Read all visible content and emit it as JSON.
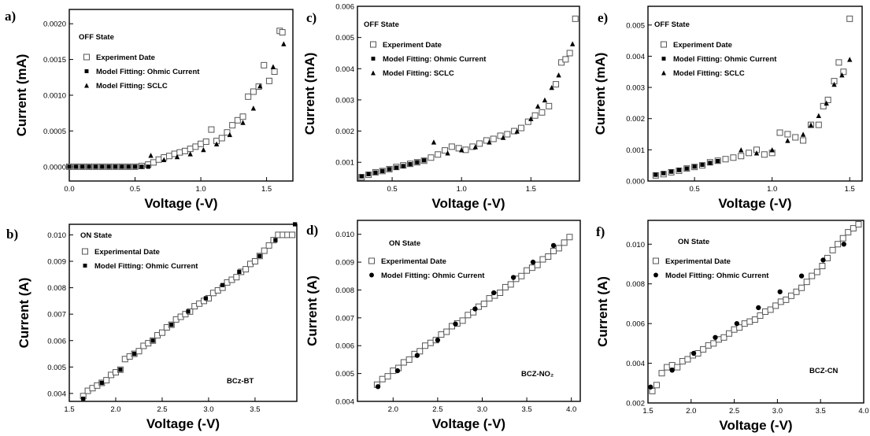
{
  "chart_data": [
    {
      "panel": "a)",
      "type": "scatter",
      "state_label": "OFF State",
      "xlabel": "Voltage (-V)",
      "ylabel": "Current (mA)",
      "sample_label": "",
      "xlim": [
        0.0,
        1.7
      ],
      "ylim": [
        -0.0002,
        0.0022
      ],
      "xticks": [
        0.0,
        0.5,
        1.0,
        1.5
      ],
      "xtick_labels": [
        "0.0",
        "0.5",
        "1.0",
        "1.5"
      ],
      "yticks": [
        0.0,
        0.0005,
        0.001,
        0.0015,
        0.002
      ],
      "ytick_labels": [
        "0.0000",
        "0.0005",
        "0.0010",
        "0.0015",
        "0.0020"
      ],
      "series": [
        {
          "name": "Experiment Date",
          "marker": "square-open",
          "x": [
            0.0,
            0.05,
            0.1,
            0.15,
            0.2,
            0.25,
            0.3,
            0.35,
            0.4,
            0.45,
            0.5,
            0.55,
            0.6,
            0.64,
            0.68,
            0.72,
            0.76,
            0.8,
            0.84,
            0.88,
            0.92,
            0.96,
            1.0,
            1.04,
            1.08,
            1.12,
            1.16,
            1.2,
            1.24,
            1.28,
            1.32,
            1.36,
            1.4,
            1.44,
            1.48,
            1.52,
            1.56,
            1.6,
            1.62
          ],
          "y": [
            0,
            0,
            0,
            0,
            0,
            0,
            0,
            0,
            0,
            0,
            0,
            1e-05,
            3e-05,
            6e-05,
            0.0001,
            0.00013,
            0.00015,
            0.00018,
            0.0002,
            0.00022,
            0.00025,
            0.00028,
            0.00032,
            0.00035,
            0.00052,
            0.00036,
            0.0004,
            0.00048,
            0.00058,
            0.00065,
            0.0007,
            0.00098,
            0.00105,
            0.00112,
            0.00142,
            0.0012,
            0.00133,
            0.0019,
            0.00188
          ]
        },
        {
          "name": "Model Fitting: Ohmic Current",
          "marker": "square-filled",
          "x": [
            0.0,
            0.05,
            0.1,
            0.15,
            0.2,
            0.25,
            0.3,
            0.35,
            0.4,
            0.45,
            0.5,
            0.55,
            0.6
          ],
          "y": [
            0,
            0,
            0,
            0,
            0,
            0,
            0,
            0,
            0,
            0,
            0,
            0,
            0
          ]
        },
        {
          "name": "Model Fitting: SCLC",
          "marker": "triangle-filled",
          "x": [
            0.62,
            0.72,
            0.82,
            0.92,
            1.02,
            1.12,
            1.22,
            1.32,
            1.4,
            1.45,
            1.55,
            1.63
          ],
          "y": [
            0.00016,
            0.0001,
            0.00014,
            0.00018,
            0.00024,
            0.00032,
            0.00045,
            0.00062,
            0.00082,
            0.00113,
            0.0014,
            0.00172
          ]
        }
      ],
      "legend": [
        "Experiment Date",
        "Model Fitting: Ohmic Current",
        "Model Fitting: SCLC"
      ]
    },
    {
      "panel": "c)",
      "type": "scatter",
      "state_label": "OFF State",
      "xlabel": "Voltage (-V)",
      "ylabel": "Current (mA)",
      "sample_label": "",
      "xlim": [
        0.25,
        1.85
      ],
      "ylim": [
        0.0004,
        0.006
      ],
      "xticks": [
        0.5,
        1.0,
        1.5
      ],
      "xtick_labels": [
        "0.5",
        "1.0",
        "1.5"
      ],
      "yticks": [
        0.001,
        0.002,
        0.003,
        0.004,
        0.005,
        0.006
      ],
      "ytick_labels": [
        "0.001",
        "0.002",
        "0.003",
        "0.004",
        "0.005",
        "0.006"
      ],
      "series": [
        {
          "name": "Experiment Date",
          "marker": "square-open",
          "x": [
            0.28,
            0.33,
            0.38,
            0.43,
            0.48,
            0.53,
            0.58,
            0.63,
            0.68,
            0.73,
            0.78,
            0.83,
            0.88,
            0.93,
            0.98,
            1.03,
            1.08,
            1.13,
            1.18,
            1.23,
            1.28,
            1.33,
            1.38,
            1.43,
            1.48,
            1.53,
            1.58,
            1.63,
            1.68,
            1.72,
            1.75,
            1.78,
            1.82
          ],
          "y": [
            0.00052,
            0.0006,
            0.00068,
            0.00072,
            0.00078,
            0.00085,
            0.0009,
            0.00095,
            0.001,
            0.00105,
            0.00115,
            0.00125,
            0.00138,
            0.0015,
            0.00145,
            0.0014,
            0.0015,
            0.0016,
            0.0017,
            0.00175,
            0.00185,
            0.0019,
            0.002,
            0.0021,
            0.0023,
            0.0025,
            0.0026,
            0.0028,
            0.0035,
            0.0042,
            0.0043,
            0.0045,
            0.0056
          ]
        },
        {
          "name": "Model Fitting: Ohmic Current",
          "marker": "square-filled",
          "x": [
            0.28,
            0.33,
            0.38,
            0.43,
            0.48,
            0.53,
            0.58,
            0.63,
            0.68,
            0.73
          ],
          "y": [
            0.00055,
            0.00062,
            0.00067,
            0.00072,
            0.00078,
            0.00083,
            0.00088,
            0.00094,
            0.001,
            0.00106
          ]
        },
        {
          "name": "Model Fitting: SCLC",
          "marker": "triangle-filled",
          "x": [
            0.8,
            0.9,
            1.0,
            1.1,
            1.2,
            1.3,
            1.4,
            1.5,
            1.55,
            1.6,
            1.65,
            1.7,
            1.8
          ],
          "y": [
            0.00165,
            0.0013,
            0.0014,
            0.0015,
            0.00165,
            0.0018,
            0.002,
            0.0024,
            0.0028,
            0.003,
            0.0034,
            0.0038,
            0.0048
          ]
        }
      ],
      "legend": [
        "Experiment Date",
        "Model Fitting: Ohmic Current",
        "Model Fitting: SCLC"
      ]
    },
    {
      "panel": "e)",
      "type": "scatter",
      "state_label": "OFF State",
      "xlabel": "Voltage (-V)",
      "ylabel": "Current (mA)",
      "sample_label": "",
      "xlim": [
        0.2,
        1.58
      ],
      "ylim": [
        0.0,
        0.0056
      ],
      "xticks": [
        0.5,
        1.0,
        1.5
      ],
      "xtick_labels": [
        "0.5",
        "1.0",
        "1.5"
      ],
      "yticks": [
        0.0,
        0.001,
        0.002,
        0.003,
        0.004,
        0.005
      ],
      "ytick_labels": [
        "0.000",
        "0.001",
        "0.002",
        "0.003",
        "0.004",
        "0.005"
      ],
      "series": [
        {
          "name": "Experiment Date",
          "marker": "square-open",
          "x": [
            0.25,
            0.3,
            0.35,
            0.4,
            0.45,
            0.5,
            0.55,
            0.6,
            0.65,
            0.7,
            0.75,
            0.8,
            0.85,
            0.9,
            0.95,
            1.0,
            1.05,
            1.1,
            1.15,
            1.2,
            1.25,
            1.3,
            1.33,
            1.36,
            1.4,
            1.43,
            1.46,
            1.5
          ],
          "y": [
            0.00018,
            0.00022,
            0.00028,
            0.00033,
            0.0004,
            0.00045,
            0.0005,
            0.0006,
            0.00065,
            0.0007,
            0.00075,
            0.0008,
            0.0009,
            0.001,
            0.00085,
            0.0009,
            0.00155,
            0.0015,
            0.0014,
            0.0013,
            0.0018,
            0.0018,
            0.0024,
            0.0026,
            0.0032,
            0.0038,
            0.0035,
            0.0052
          ]
        },
        {
          "name": "Model Fitting: Ohmic Current",
          "marker": "square-filled",
          "x": [
            0.25,
            0.3,
            0.35,
            0.4,
            0.45,
            0.5,
            0.55,
            0.6,
            0.65
          ],
          "y": [
            0.0002,
            0.00025,
            0.0003,
            0.00035,
            0.0004,
            0.00046,
            0.00052,
            0.00058,
            0.00064
          ]
        },
        {
          "name": "Model Fitting: SCLC",
          "marker": "triangle-filled",
          "x": [
            0.8,
            0.9,
            1.0,
            1.1,
            1.2,
            1.25,
            1.3,
            1.35,
            1.4,
            1.45,
            1.5
          ],
          "y": [
            0.001,
            0.0009,
            0.001,
            0.0013,
            0.0015,
            0.0018,
            0.0021,
            0.0025,
            0.0031,
            0.0034,
            0.0039
          ]
        }
      ],
      "legend": [
        "Experiment Date",
        "Model Fitting: Ohmic Current",
        "Model Fitting: SCLC"
      ]
    },
    {
      "panel": "b)",
      "type": "scatter",
      "state_label": "ON State",
      "xlabel": "Voltage (-V)",
      "ylabel": "Current (A)",
      "sample_label": "BCz-BT",
      "xlim": [
        1.5,
        3.95
      ],
      "ylim": [
        0.0037,
        0.0104
      ],
      "xticks": [
        1.5,
        2.0,
        2.5,
        3.0,
        3.5
      ],
      "xtick_labels": [
        "1.5",
        "2.0",
        "2.5",
        "3.0",
        "3.5"
      ],
      "yticks": [
        0.004,
        0.005,
        0.006,
        0.007,
        0.008,
        0.009,
        0.01
      ],
      "ytick_labels": [
        "0.004",
        "0.005",
        "0.006",
        "0.007",
        "0.008",
        "0.009",
        "0.010"
      ],
      "series": [
        {
          "name": "Experimental Date",
          "marker": "square-open",
          "x": [
            1.65,
            1.7,
            1.75,
            1.8,
            1.85,
            1.9,
            1.95,
            2.0,
            2.05,
            2.1,
            2.15,
            2.2,
            2.25,
            2.3,
            2.35,
            2.4,
            2.45,
            2.5,
            2.55,
            2.6,
            2.65,
            2.7,
            2.75,
            2.8,
            2.85,
            2.9,
            2.95,
            3.0,
            3.05,
            3.1,
            3.15,
            3.2,
            3.25,
            3.3,
            3.35,
            3.4,
            3.45,
            3.5,
            3.55,
            3.6,
            3.65,
            3.7,
            3.75,
            3.8,
            3.85,
            3.9
          ],
          "y": [
            0.0039,
            0.0041,
            0.0042,
            0.0043,
            0.0044,
            0.0045,
            0.0047,
            0.0048,
            0.0049,
            0.0053,
            0.0054,
            0.0055,
            0.0056,
            0.0058,
            0.0059,
            0.006,
            0.0062,
            0.0063,
            0.0065,
            0.0066,
            0.0068,
            0.0069,
            0.007,
            0.0071,
            0.0073,
            0.0074,
            0.0075,
            0.0076,
            0.0078,
            0.0079,
            0.008,
            0.0082,
            0.0083,
            0.0084,
            0.0086,
            0.0087,
            0.0089,
            0.009,
            0.0092,
            0.0094,
            0.0096,
            0.0098,
            0.01,
            0.01,
            0.01,
            0.01
          ]
        },
        {
          "name": "Model Fitting: Ohmic Current",
          "marker": "square-filled",
          "x": [
            1.65,
            1.85,
            2.05,
            2.2,
            2.4,
            2.6,
            2.78,
            2.97,
            3.15,
            3.33,
            3.55,
            3.72,
            3.93
          ],
          "y": [
            0.0038,
            0.0044,
            0.0049,
            0.0055,
            0.006,
            0.0066,
            0.0071,
            0.0076,
            0.0081,
            0.0086,
            0.0092,
            0.0098,
            0.0104
          ]
        }
      ],
      "legend": [
        "Experimental Date",
        "Model Fitting: Ohmic Current"
      ]
    },
    {
      "panel": "d)",
      "type": "scatter",
      "state_label": "ON State",
      "xlabel": "Voltage (-V)",
      "ylabel": "Current (A)",
      "sample_label": "BCZ-NO₂",
      "xlim": [
        1.6,
        4.1
      ],
      "ylim": [
        0.004,
        0.0105
      ],
      "xticks": [
        2.0,
        2.5,
        3.0,
        3.5,
        4.0
      ],
      "xtick_labels": [
        "2.0",
        "2.5",
        "3.0",
        "3.5",
        "4.0"
      ],
      "yticks": [
        0.004,
        0.005,
        0.006,
        0.007,
        0.008,
        0.009,
        0.01
      ],
      "ytick_labels": [
        "0.004",
        "0.005",
        "0.006",
        "0.007",
        "0.008",
        "0.009",
        "0.010"
      ],
      "series": [
        {
          "name": "Experimental Date",
          "marker": "square-open",
          "x": [
            1.82,
            1.88,
            1.94,
            2.0,
            2.06,
            2.12,
            2.18,
            2.24,
            2.3,
            2.36,
            2.42,
            2.48,
            2.54,
            2.6,
            2.66,
            2.72,
            2.78,
            2.84,
            2.9,
            2.96,
            3.02,
            3.08,
            3.14,
            3.2,
            3.26,
            3.32,
            3.38,
            3.44,
            3.5,
            3.56,
            3.62,
            3.68,
            3.74,
            3.8,
            3.86,
            3.92,
            3.98
          ],
          "y": [
            0.0046,
            0.0048,
            0.0049,
            0.0051,
            0.0052,
            0.0054,
            0.0055,
            0.0057,
            0.0058,
            0.006,
            0.0061,
            0.0062,
            0.0064,
            0.0065,
            0.0067,
            0.0068,
            0.0069,
            0.0071,
            0.0072,
            0.0074,
            0.0075,
            0.0077,
            0.0078,
            0.0079,
            0.0081,
            0.0082,
            0.0084,
            0.0085,
            0.0087,
            0.0088,
            0.0089,
            0.0091,
            0.0092,
            0.0094,
            0.0095,
            0.0097,
            0.0099
          ]
        },
        {
          "name": "Model Fitting: Ohmic Current",
          "marker": "circle-filled",
          "x": [
            1.83,
            2.05,
            2.27,
            2.5,
            2.7,
            2.92,
            3.13,
            3.35,
            3.57,
            3.8
          ],
          "y": [
            0.00453,
            0.0051,
            0.00565,
            0.0062,
            0.00678,
            0.00732,
            0.0079,
            0.00845,
            0.009,
            0.0096
          ]
        }
      ],
      "legend": [
        "Experimental Date",
        "Model Fitting: Ohmic Current"
      ]
    },
    {
      "panel": "f)",
      "type": "scatter",
      "state_label": "ON State",
      "xlabel": "Voltage (-V)",
      "ylabel": "Current (A)",
      "sample_label": "BCZ-CN",
      "xlim": [
        1.5,
        4.0
      ],
      "ylim": [
        0.002,
        0.0112
      ],
      "xticks": [
        1.5,
        2.0,
        2.5,
        3.0,
        3.5,
        4.0
      ],
      "xtick_labels": [
        "1.5",
        "2.0",
        "2.5",
        "3.0",
        "3.5",
        "4.0"
      ],
      "yticks": [
        0.002,
        0.004,
        0.006,
        0.008,
        0.01
      ],
      "ytick_labels": [
        "0.002",
        "0.004",
        "0.006",
        "0.008",
        "0.010"
      ],
      "series": [
        {
          "name": "Experimental Date",
          "marker": "square-open",
          "x": [
            1.55,
            1.6,
            1.66,
            1.72,
            1.78,
            1.84,
            1.9,
            1.96,
            2.02,
            2.08,
            2.14,
            2.2,
            2.26,
            2.32,
            2.38,
            2.44,
            2.5,
            2.56,
            2.62,
            2.68,
            2.74,
            2.8,
            2.86,
            2.92,
            2.98,
            3.04,
            3.1,
            3.16,
            3.22,
            3.28,
            3.34,
            3.4,
            3.46,
            3.52,
            3.58,
            3.64,
            3.7,
            3.76,
            3.82,
            3.88,
            3.94
          ],
          "y": [
            0.0026,
            0.0029,
            0.0035,
            0.0038,
            0.0039,
            0.0038,
            0.0041,
            0.0042,
            0.0044,
            0.0045,
            0.0047,
            0.0049,
            0.005,
            0.0052,
            0.0053,
            0.0055,
            0.0057,
            0.0058,
            0.006,
            0.0061,
            0.0062,
            0.0064,
            0.0066,
            0.0067,
            0.0069,
            0.0071,
            0.0072,
            0.0074,
            0.0076,
            0.0078,
            0.0081,
            0.0084,
            0.0086,
            0.0089,
            0.0093,
            0.0097,
            0.01,
            0.0103,
            0.0106,
            0.0108,
            0.011
          ]
        },
        {
          "name": "Model Fitting: Ohmic Current",
          "marker": "circle-filled",
          "x": [
            1.53,
            1.78,
            2.03,
            2.28,
            2.53,
            2.78,
            3.03,
            3.28,
            3.53,
            3.77
          ],
          "y": [
            0.0028,
            0.00365,
            0.0045,
            0.0053,
            0.006,
            0.0068,
            0.0076,
            0.0084,
            0.0092,
            0.01
          ]
        }
      ],
      "legend": [
        "Experimental Date",
        "Model Fitting: Ohmic Current"
      ]
    }
  ]
}
